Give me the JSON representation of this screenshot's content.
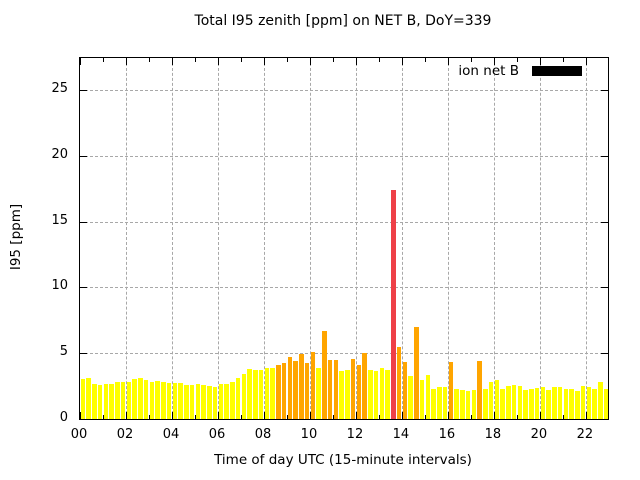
{
  "chart_data": {
    "type": "bar",
    "title": "Total I95 zenith [ppm] on NET B, DoY=339",
    "xlabel": "Time of day UTC (15-minute intervals)",
    "ylabel": "I95 [ppm]",
    "legend": {
      "label": "ion net B",
      "swatch_color": "#000000"
    },
    "grid": true,
    "legend_position": "top-right-inside",
    "x_start_hour": 0,
    "interval_minutes": 15,
    "xlim": [
      0,
      22.96
    ],
    "ylim": [
      0,
      27.45
    ],
    "x_major_tick_hours": [
      0,
      2,
      4,
      6,
      8,
      10,
      12,
      14,
      16,
      18,
      20,
      22
    ],
    "x_major_tick_labels": [
      "00",
      "02",
      "04",
      "06",
      "08",
      "10",
      "12",
      "14",
      "16",
      "18",
      "20",
      "22"
    ],
    "x_minor_step_hours": 1,
    "y_ticks": [
      0,
      5,
      10,
      15,
      20,
      25
    ],
    "y_tick_labels": [
      "0",
      "5",
      "10",
      "15",
      "20",
      "25"
    ],
    "palette": {
      "y": "#ffff00",
      "o": "#ffa500",
      "r": "#ee4048"
    },
    "times": [
      "00:00",
      "00:15",
      "00:30",
      "00:45",
      "01:00",
      "01:15",
      "01:30",
      "01:45",
      "02:00",
      "02:15",
      "02:30",
      "02:45",
      "03:00",
      "03:15",
      "03:30",
      "03:45",
      "04:00",
      "04:15",
      "04:30",
      "04:45",
      "05:00",
      "05:15",
      "05:30",
      "05:45",
      "06:00",
      "06:15",
      "06:30",
      "06:45",
      "07:00",
      "07:15",
      "07:30",
      "07:45",
      "08:00",
      "08:15",
      "08:30",
      "08:45",
      "09:00",
      "09:15",
      "09:30",
      "09:45",
      "10:00",
      "10:15",
      "10:30",
      "10:45",
      "11:00",
      "11:15",
      "11:30",
      "11:45",
      "12:00",
      "12:15",
      "12:30",
      "12:45",
      "13:00",
      "13:15",
      "13:30",
      "13:45",
      "14:00",
      "14:15",
      "14:30",
      "14:45",
      "15:00",
      "15:15",
      "15:30",
      "15:45",
      "16:00",
      "16:15",
      "16:30",
      "16:45",
      "17:00",
      "17:15",
      "17:30",
      "17:45",
      "18:00",
      "18:15",
      "18:30",
      "18:45",
      "19:00",
      "19:15",
      "19:30",
      "19:45",
      "20:00",
      "20:15",
      "20:30",
      "20:45",
      "21:00",
      "21:15",
      "21:30",
      "21:45",
      "22:00",
      "22:15",
      "22:30",
      "22:45"
    ],
    "values": [
      3.05,
      3.15,
      2.65,
      2.55,
      2.65,
      2.7,
      2.8,
      2.8,
      2.85,
      3.05,
      3.1,
      2.95,
      2.85,
      2.9,
      2.8,
      2.75,
      2.75,
      2.75,
      2.55,
      2.6,
      2.65,
      2.6,
      2.5,
      2.4,
      2.65,
      2.65,
      2.8,
      3.15,
      3.45,
      3.8,
      3.75,
      3.75,
      3.9,
      3.9,
      4.1,
      4.25,
      4.7,
      4.4,
      4.95,
      4.25,
      5.1,
      3.9,
      6.7,
      4.45,
      4.5,
      3.65,
      3.75,
      4.55,
      4.1,
      5.0,
      3.75,
      3.65,
      3.85,
      3.7,
      17.4,
      5.45,
      4.35,
      3.25,
      7.0,
      2.95,
      3.35,
      2.3,
      2.4,
      2.4,
      4.3,
      2.25,
      2.2,
      2.1,
      2.2,
      4.4,
      2.3,
      2.8,
      3.0,
      2.25,
      2.5,
      2.55,
      2.5,
      2.2,
      2.3,
      2.35,
      2.4,
      2.2,
      2.4,
      2.45,
      2.25,
      2.25,
      2.15,
      2.5,
      2.4,
      2.25,
      2.8,
      2.3
    ],
    "colors": [
      "y",
      "y",
      "y",
      "y",
      "y",
      "y",
      "y",
      "y",
      "y",
      "y",
      "y",
      "y",
      "y",
      "y",
      "y",
      "y",
      "y",
      "y",
      "y",
      "y",
      "y",
      "y",
      "y",
      "y",
      "y",
      "y",
      "y",
      "y",
      "y",
      "y",
      "y",
      "y",
      "y",
      "y",
      "o",
      "o",
      "o",
      "o",
      "o",
      "o",
      "o",
      "y",
      "o",
      "o",
      "o",
      "y",
      "y",
      "o",
      "o",
      "o",
      "y",
      "y",
      "y",
      "y",
      "r",
      "o",
      "o",
      "y",
      "o",
      "y",
      "y",
      "y",
      "y",
      "y",
      "o",
      "y",
      "y",
      "y",
      "y",
      "o",
      "y",
      "y",
      "y",
      "y",
      "y",
      "y",
      "y",
      "y",
      "y",
      "y",
      "y",
      "y",
      "y",
      "y",
      "y",
      "y",
      "y",
      "y",
      "y",
      "y",
      "y",
      "y"
    ]
  }
}
